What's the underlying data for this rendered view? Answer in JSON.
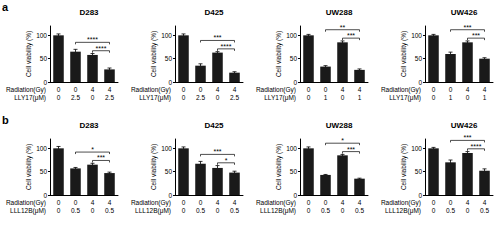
{
  "chart_data": [
    {
      "type": "bar",
      "panel_label": "a",
      "title": "D283",
      "y_label": "Cell viability (%)",
      "categories": [
        null,
        null,
        null,
        null
      ],
      "values": [
        100,
        65,
        58,
        27
      ],
      "errors": [
        3,
        5,
        3,
        3
      ],
      "color": "#1a1a1a",
      "ylim": [
        0,
        120
      ],
      "yticks": [
        0,
        50,
        100
      ],
      "grid": false,
      "conditions": [
        {
          "name": "Radiation(Gy)",
          "values": [
            0,
            0,
            4,
            4
          ]
        },
        {
          "name": "LLY17(μM)",
          "values": [
            0,
            2.5,
            0,
            2.5
          ]
        }
      ],
      "significance": [
        {
          "from": 1,
          "to": 3,
          "text": "****"
        },
        {
          "from": 2,
          "to": 3,
          "text": "****"
        }
      ]
    },
    {
      "type": "bar",
      "title": "D425",
      "y_label": "Cell viability (%)",
      "categories": [
        null,
        null,
        null,
        null
      ],
      "values": [
        100,
        35,
        63,
        20
      ],
      "errors": [
        3,
        4,
        2,
        2
      ],
      "color": "#1a1a1a",
      "ylim": [
        0,
        120
      ],
      "yticks": [
        0,
        50,
        100
      ],
      "grid": false,
      "conditions": [
        {
          "name": "Radiation(Gy)",
          "values": [
            0,
            0,
            4,
            4
          ]
        },
        {
          "name": "LLY17(μM)",
          "values": [
            0,
            2.5,
            0,
            2.5
          ]
        }
      ],
      "significance": [
        {
          "from": 1,
          "to": 3,
          "text": "***"
        },
        {
          "from": 2,
          "to": 3,
          "text": "****"
        }
      ]
    },
    {
      "type": "bar",
      "title": "UW288",
      "y_label": "Cell viability (%)",
      "categories": [
        null,
        null,
        null,
        null
      ],
      "values": [
        100,
        33,
        85,
        26
      ],
      "errors": [
        2,
        2,
        3,
        2
      ],
      "color": "#1a1a1a",
      "ylim": [
        0,
        120
      ],
      "yticks": [
        0,
        50,
        100
      ],
      "grid": false,
      "conditions": [
        {
          "name": "Radiation(Gy)",
          "values": [
            0,
            0,
            4,
            4
          ]
        },
        {
          "name": "LLY17(μM)",
          "values": [
            0,
            1,
            0,
            1
          ]
        }
      ],
      "significance": [
        {
          "from": 1,
          "to": 3,
          "text": "**"
        },
        {
          "from": 2,
          "to": 3,
          "text": "***"
        }
      ]
    },
    {
      "type": "bar",
      "title": "UW426",
      "y_label": "Cell viability (%)",
      "categories": [
        null,
        null,
        null,
        null
      ],
      "values": [
        100,
        60,
        85,
        50
      ],
      "errors": [
        2,
        4,
        3,
        2
      ],
      "color": "#1a1a1a",
      "ylim": [
        0,
        120
      ],
      "yticks": [
        0,
        50,
        100
      ],
      "grid": false,
      "conditions": [
        {
          "name": "Radiation(Gy)",
          "values": [
            0,
            0,
            4,
            4
          ]
        },
        {
          "name": "LLY17(μM)",
          "values": [
            0,
            1,
            0,
            1
          ]
        }
      ],
      "significance": [
        {
          "from": 1,
          "to": 3,
          "text": "***"
        },
        {
          "from": 2,
          "to": 3,
          "text": "***"
        }
      ]
    },
    {
      "type": "bar",
      "panel_label": "b",
      "title": "D283",
      "y_label": "Cell viability (%)",
      "categories": [
        null,
        null,
        null,
        null
      ],
      "values": [
        100,
        57,
        65,
        47
      ],
      "errors": [
        4,
        2,
        3,
        2
      ],
      "color": "#1a1a1a",
      "ylim": [
        0,
        120
      ],
      "yticks": [
        0,
        50,
        100
      ],
      "grid": false,
      "conditions": [
        {
          "name": "Radiation(Gy)",
          "values": [
            0,
            0,
            4,
            4
          ]
        },
        {
          "name": "LLL12B(μM)",
          "values": [
            0,
            0.5,
            0,
            0.5
          ]
        }
      ],
      "significance": [
        {
          "from": 1,
          "to": 3,
          "text": "*"
        },
        {
          "from": 2,
          "to": 3,
          "text": "***"
        }
      ]
    },
    {
      "type": "bar",
      "title": "D425",
      "y_label": "Cell viability (%)",
      "categories": [
        null,
        null,
        null,
        null
      ],
      "values": [
        100,
        67,
        58,
        48
      ],
      "errors": [
        3,
        5,
        5,
        3
      ],
      "color": "#1a1a1a",
      "ylim": [
        0,
        120
      ],
      "yticks": [
        0,
        50,
        100
      ],
      "grid": false,
      "conditions": [
        {
          "name": "Radiation(Gy)",
          "values": [
            0,
            0,
            4,
            4
          ]
        },
        {
          "name": "LLL12B(μM)",
          "values": [
            0,
            0.5,
            0,
            0.5
          ]
        }
      ],
      "significance": [
        {
          "from": 1,
          "to": 3,
          "text": "***"
        },
        {
          "from": 2,
          "to": 3,
          "text": "*"
        }
      ]
    },
    {
      "type": "bar",
      "title": "UW288",
      "y_label": "Cell viability (%)",
      "categories": [
        null,
        null,
        null,
        null
      ],
      "values": [
        100,
        43,
        85,
        35
      ],
      "errors": [
        3,
        1,
        2,
        1
      ],
      "color": "#1a1a1a",
      "ylim": [
        0,
        120
      ],
      "yticks": [
        0,
        50,
        100
      ],
      "grid": false,
      "conditions": [
        {
          "name": "Radiation(Gy)",
          "values": [
            0,
            0,
            4,
            4
          ]
        },
        {
          "name": "LLL12B(μM)",
          "values": [
            0,
            0.5,
            0,
            0.5
          ]
        }
      ],
      "significance": [
        {
          "from": 1,
          "to": 3,
          "text": "*"
        },
        {
          "from": 2,
          "to": 3,
          "text": "***"
        }
      ]
    },
    {
      "type": "bar",
      "title": "UW426",
      "y_label": "Cell viability (%)",
      "categories": [
        null,
        null,
        null,
        null
      ],
      "values": [
        100,
        70,
        90,
        52
      ],
      "errors": [
        2,
        5,
        3,
        4
      ],
      "color": "#1a1a1a",
      "ylim": [
        0,
        120
      ],
      "yticks": [
        0,
        50,
        100
      ],
      "grid": false,
      "conditions": [
        {
          "name": "Radiation(Gy)",
          "values": [
            0,
            0,
            4,
            4
          ]
        },
        {
          "name": "LLL12B(μM)",
          "values": [
            0,
            0.5,
            0,
            0.5
          ]
        }
      ],
      "significance": [
        {
          "from": 1,
          "to": 3,
          "text": "***"
        },
        {
          "from": 2,
          "to": 3,
          "text": "****"
        }
      ]
    }
  ]
}
